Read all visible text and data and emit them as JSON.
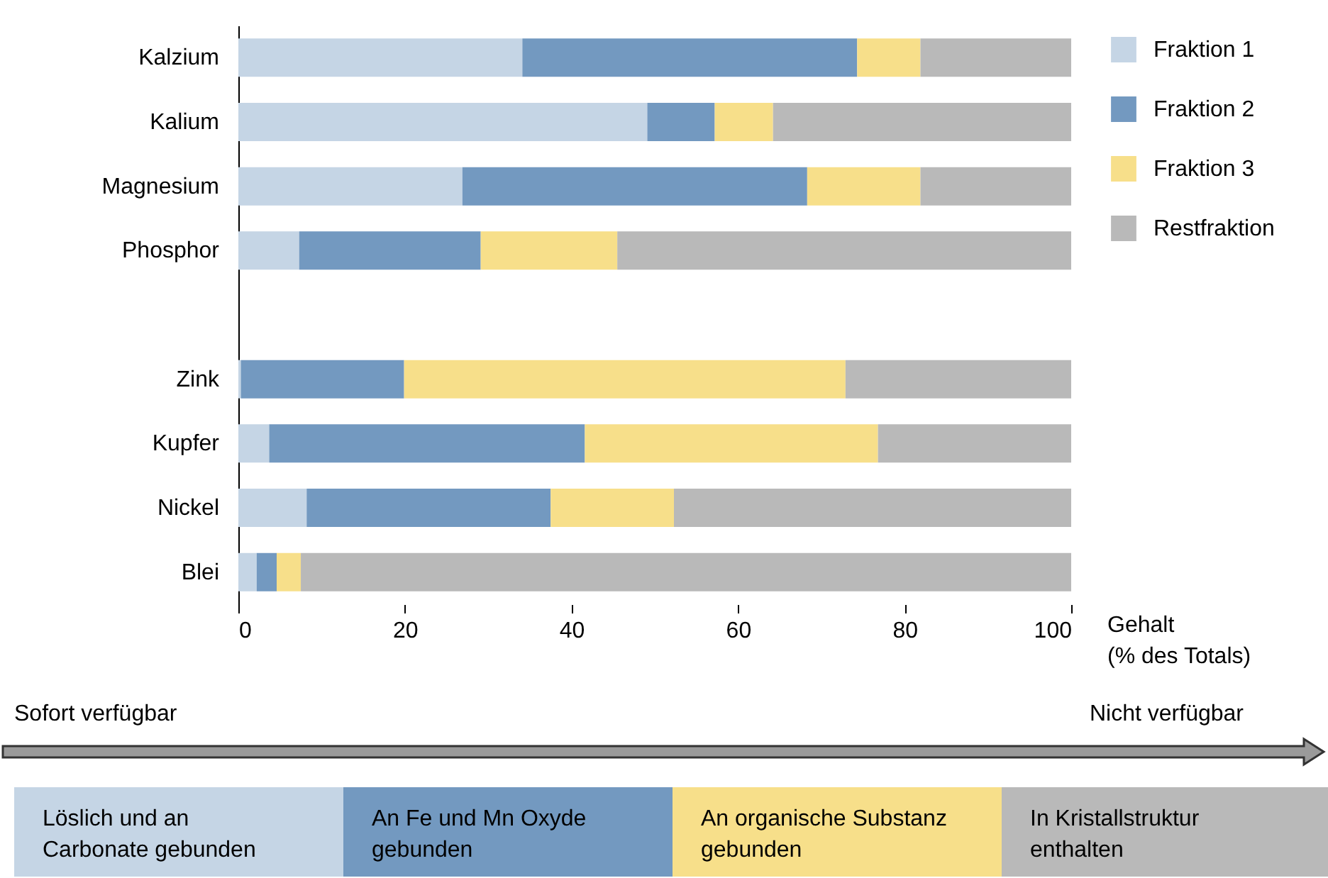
{
  "chart_data": {
    "type": "bar",
    "orientation": "horizontal",
    "stacked": true,
    "categories": [
      "Kalzium",
      "Kalium",
      "Magnesium",
      "Phosphor",
      null,
      "Zink",
      "Kupfer",
      "Nickel",
      "Blei"
    ],
    "series": [
      {
        "name": "Fraktion 1",
        "color": "#c5d5e5",
        "values": [
          34.1,
          49.1,
          26.9,
          7.3,
          null,
          0.3,
          3.7,
          8.2,
          2.2
        ]
      },
      {
        "name": "Fraktion 2",
        "color": "#7399c0",
        "values": [
          40.2,
          8.1,
          41.4,
          21.8,
          null,
          19.6,
          37.9,
          29.3,
          2.4
        ]
      },
      {
        "name": "Fraktion 3",
        "color": "#f7df8a",
        "values": [
          7.6,
          7.0,
          13.6,
          16.4,
          null,
          53.0,
          35.2,
          14.8,
          2.9
        ]
      },
      {
        "name": "Restfraktion",
        "color": "#b9b9b9",
        "values": [
          18.1,
          35.8,
          18.1,
          54.5,
          null,
          27.1,
          23.2,
          47.7,
          92.5
        ]
      }
    ],
    "xlabel": "Gehalt\n(% des Totals)",
    "xlim": [
      0,
      100
    ],
    "xticks": [
      0,
      20,
      40,
      60,
      80,
      100
    ],
    "grid": false,
    "legend": "right",
    "annotations": [
      "Sofort verfügbar",
      "Nicht verfügbar",
      "Löslich und an\nCarbonate gebunden",
      "An Fe und Mn Oxyde\ngebunden",
      "An organische Substanz\ngebunden",
      "In Kristallstruktur\nenthalten"
    ]
  }
}
